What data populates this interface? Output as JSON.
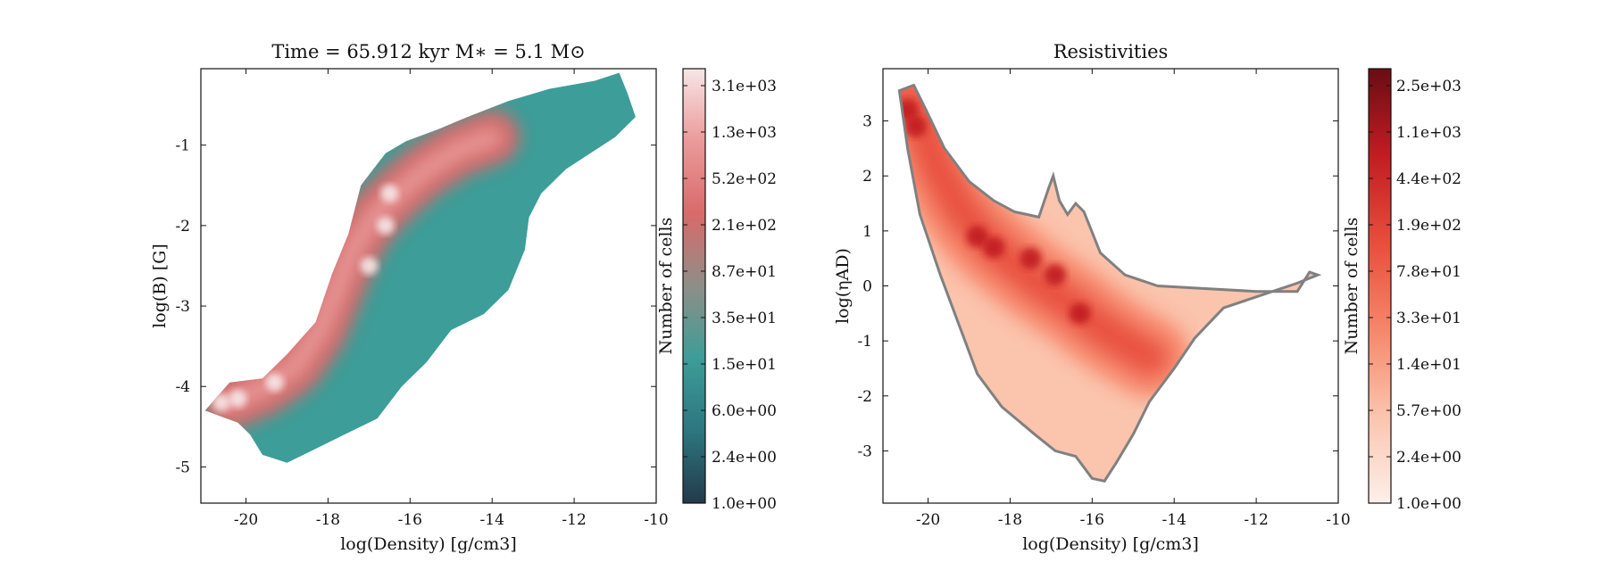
{
  "chart_data": [
    {
      "type": "heatmap",
      "title": "Time = 65.912 kyr    M∗ = 5.1 M⊙",
      "xlabel": "log(Density) [g/cm3]",
      "ylabel": "log(B) [G]",
      "xlim": [
        -21.1,
        -10.0
      ],
      "ylim": [
        -5.45,
        -0.05
      ],
      "xticks": [
        -20,
        -18,
        -16,
        -14,
        -12,
        -10
      ],
      "yticks": [
        -1,
        -2,
        -3,
        -4,
        -5
      ],
      "xtick_labels": [
        "-20",
        "-18",
        "-16",
        "-14",
        "-12",
        "-10"
      ],
      "ytick_labels": [
        "-1",
        "-2",
        "-3",
        "-4",
        "-5"
      ],
      "colorbar": {
        "label": "Number of cells",
        "scale": "log",
        "tick_labels": [
          "1.0e+00",
          "2.4e+00",
          "6.0e+00",
          "1.5e+01",
          "3.5e+01",
          "8.7e+01",
          "2.1e+02",
          "5.2e+02",
          "1.3e+03",
          "3.1e+03"
        ],
        "colors": [
          "#233a4a",
          "#2d7680",
          "#3d9d98",
          "#8e8e88",
          "#d96a6a",
          "#eb9a9a",
          "#f7e6e6"
        ]
      },
      "region_outline": [
        [
          -21.0,
          -4.3
        ],
        [
          -20.4,
          -3.95
        ],
        [
          -19.6,
          -3.9
        ],
        [
          -19.0,
          -3.6
        ],
        [
          -18.3,
          -3.2
        ],
        [
          -17.9,
          -2.6
        ],
        [
          -17.5,
          -2.1
        ],
        [
          -17.2,
          -1.5
        ],
        [
          -16.9,
          -1.3
        ],
        [
          -16.6,
          -1.1
        ],
        [
          -16.1,
          -0.95
        ],
        [
          -15.3,
          -0.8
        ],
        [
          -14.6,
          -0.65
        ],
        [
          -13.6,
          -0.45
        ],
        [
          -12.6,
          -0.3
        ],
        [
          -11.5,
          -0.2
        ],
        [
          -10.9,
          -0.1
        ],
        [
          -10.7,
          -0.35
        ],
        [
          -10.5,
          -0.65
        ],
        [
          -11.0,
          -0.9
        ],
        [
          -12.2,
          -1.3
        ],
        [
          -12.8,
          -1.6
        ],
        [
          -13.1,
          -1.9
        ],
        [
          -13.2,
          -2.3
        ],
        [
          -13.6,
          -2.8
        ],
        [
          -14.2,
          -3.1
        ],
        [
          -15.0,
          -3.3
        ],
        [
          -15.6,
          -3.7
        ],
        [
          -16.2,
          -4.0
        ],
        [
          -16.8,
          -4.4
        ],
        [
          -17.6,
          -4.6
        ],
        [
          -18.4,
          -4.8
        ],
        [
          -19.0,
          -4.95
        ],
        [
          -19.6,
          -4.85
        ],
        [
          -19.9,
          -4.6
        ],
        [
          -20.2,
          -4.45
        ]
      ],
      "ridge_points": [
        [
          -20.4,
          -4.2
        ],
        [
          -19.5,
          -4.0
        ],
        [
          -18.8,
          -3.75
        ],
        [
          -18.2,
          -3.3
        ],
        [
          -17.8,
          -2.8
        ],
        [
          -17.4,
          -2.3
        ],
        [
          -16.9,
          -1.9
        ],
        [
          -16.3,
          -1.6
        ],
        [
          -15.6,
          -1.3
        ],
        [
          -14.8,
          -1.05
        ],
        [
          -14.0,
          -0.9
        ]
      ],
      "peak_points": [
        [
          -20.6,
          -4.2
        ],
        [
          -20.2,
          -4.15
        ],
        [
          -19.3,
          -3.95
        ],
        [
          -16.6,
          -2.0
        ],
        [
          -16.5,
          -1.6
        ],
        [
          -17.0,
          -2.5
        ]
      ]
    },
    {
      "type": "heatmap",
      "title": "Resistivities",
      "xlabel": "log(Density) [g/cm3]",
      "ylabel": "log(ηAD)",
      "xlim": [
        -21.1,
        -10.0
      ],
      "ylim": [
        -3.95,
        3.95
      ],
      "xticks": [
        -20,
        -18,
        -16,
        -14,
        -12,
        -10
      ],
      "yticks": [
        3,
        2,
        1,
        0,
        -1,
        -2,
        -3
      ],
      "xtick_labels": [
        "-20",
        "-18",
        "-16",
        "-14",
        "-12",
        "-10"
      ],
      "ytick_labels": [
        "3",
        "2",
        "1",
        "0",
        "-1",
        "-2",
        "-3"
      ],
      "colorbar": {
        "label": "Number of cells",
        "scale": "log",
        "tick_labels": [
          "1.0e+00",
          "2.4e+00",
          "5.7e+00",
          "1.4e+01",
          "3.3e+01",
          "7.8e+01",
          "1.9e+02",
          "4.4e+02",
          "1.1e+03",
          "2.5e+03"
        ],
        "colors": [
          "#fdf0ea",
          "#fbc4ad",
          "#f6866a",
          "#e74e3c",
          "#c11d22",
          "#6a0c14"
        ]
      },
      "region_outline": [
        [
          -20.7,
          3.55
        ],
        [
          -20.35,
          3.65
        ],
        [
          -20.05,
          3.2
        ],
        [
          -19.6,
          2.5
        ],
        [
          -19.0,
          1.9
        ],
        [
          -18.4,
          1.55
        ],
        [
          -17.9,
          1.35
        ],
        [
          -17.3,
          1.25
        ],
        [
          -17.05,
          1.8
        ],
        [
          -16.95,
          2.0
        ],
        [
          -16.8,
          1.55
        ],
        [
          -16.6,
          1.3
        ],
        [
          -16.4,
          1.5
        ],
        [
          -16.2,
          1.35
        ],
        [
          -15.8,
          0.6
        ],
        [
          -15.2,
          0.2
        ],
        [
          -14.4,
          0.0
        ],
        [
          -13.2,
          -0.05
        ],
        [
          -12.0,
          -0.1
        ],
        [
          -11.0,
          -0.1
        ],
        [
          -10.7,
          0.25
        ],
        [
          -10.5,
          0.2
        ],
        [
          -11.0,
          0.05
        ],
        [
          -12.0,
          -0.2
        ],
        [
          -12.8,
          -0.4
        ],
        [
          -13.5,
          -0.95
        ],
        [
          -14.0,
          -1.5
        ],
        [
          -14.6,
          -2.1
        ],
        [
          -15.0,
          -2.7
        ],
        [
          -15.4,
          -3.2
        ],
        [
          -15.7,
          -3.55
        ],
        [
          -16.0,
          -3.5
        ],
        [
          -16.4,
          -3.1
        ],
        [
          -16.9,
          -3.0
        ],
        [
          -17.4,
          -2.7
        ],
        [
          -18.2,
          -2.2
        ],
        [
          -18.8,
          -1.6
        ],
        [
          -19.3,
          -0.6
        ],
        [
          -19.7,
          0.2
        ],
        [
          -20.2,
          1.3
        ],
        [
          -20.5,
          2.5
        ]
      ],
      "ridge_points": [
        [
          -20.5,
          3.4
        ],
        [
          -20.2,
          3.0
        ],
        [
          -19.8,
          2.2
        ],
        [
          -19.3,
          1.5
        ],
        [
          -18.9,
          1.1
        ],
        [
          -18.4,
          0.7
        ],
        [
          -17.9,
          0.4
        ],
        [
          -17.4,
          0.1
        ],
        [
          -16.9,
          -0.15
        ],
        [
          -16.4,
          -0.4
        ],
        [
          -15.9,
          -0.7
        ],
        [
          -15.3,
          -1.0
        ],
        [
          -14.6,
          -1.3
        ]
      ],
      "peak_points": [
        [
          -20.5,
          3.2
        ],
        [
          -20.3,
          2.9
        ],
        [
          -18.8,
          0.9
        ],
        [
          -18.4,
          0.7
        ],
        [
          -17.5,
          0.5
        ],
        [
          -16.9,
          0.2
        ],
        [
          -16.3,
          -0.5
        ]
      ]
    }
  ]
}
